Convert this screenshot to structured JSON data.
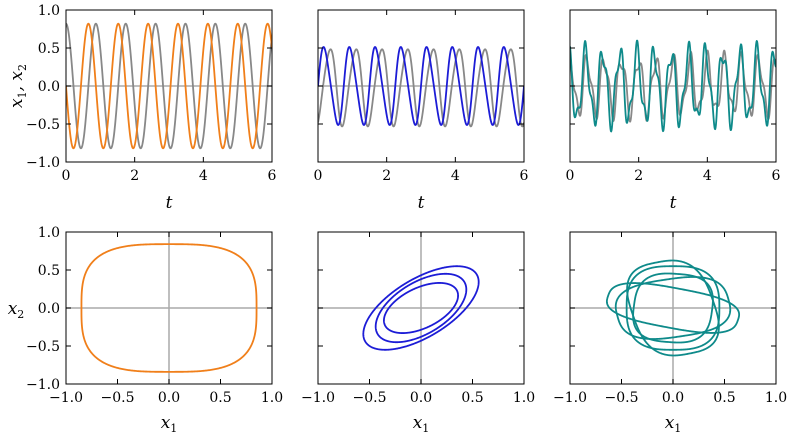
{
  "colors": {
    "orange": "#f07f1a",
    "blue": "#1c1cd6",
    "teal": "#0e8a8a",
    "gray": "#888888",
    "zero": "#aaaaaa"
  },
  "chart_data": [
    {
      "id": "ts-left",
      "type": "line",
      "xlabel": "t",
      "ylabel": "x1,x2",
      "xlim": [
        0,
        6
      ],
      "ylim": [
        -1.0,
        1.0
      ],
      "xticks": [
        "0",
        "2",
        "4",
        "6"
      ],
      "yticks": [
        "1.0",
        "0.5",
        "0.0",
        "−0.5",
        "−1.0"
      ],
      "grid": false,
      "series": [
        {
          "role": "x1",
          "color": "orange",
          "amplitude": 0.82,
          "period": 0.87,
          "phase": 0.25
        },
        {
          "role": "x2",
          "color": "gray",
          "amplitude": 0.82,
          "period": 0.87,
          "phase": 0.0
        }
      ]
    },
    {
      "id": "ts-middle",
      "type": "line",
      "xlabel": "t",
      "ylabel": "",
      "xlim": [
        0,
        6
      ],
      "ylim": [
        -1.0,
        1.0
      ],
      "xticks": [
        "0",
        "2",
        "4",
        "6"
      ],
      "yticks": [],
      "grid": false,
      "series": [
        {
          "role": "x1",
          "color": "blue",
          "amplitude": 0.55,
          "period": 0.75,
          "phase": 0.15
        },
        {
          "role": "x2",
          "color": "gray",
          "amplitude": 0.55,
          "period": 0.75,
          "phase": 0.0
        }
      ]
    },
    {
      "id": "ts-right",
      "type": "line",
      "xlabel": "t",
      "ylabel": "",
      "xlim": [
        0,
        6
      ],
      "ylim": [
        -1.0,
        1.0
      ],
      "xticks": [
        "0",
        "2",
        "4",
        "6"
      ],
      "yticks": [],
      "grid": false,
      "series": [
        {
          "role": "x1",
          "color": "teal",
          "amplitude": 0.55,
          "period": 0.5,
          "phase": 0.1
        },
        {
          "role": "x2",
          "color": "gray",
          "amplitude": 0.45,
          "period": 0.5,
          "phase": 0.0
        }
      ]
    },
    {
      "id": "phase-left",
      "type": "line",
      "xlabel": "x1",
      "ylabel": "x2",
      "xlim": [
        -1.0,
        1.0
      ],
      "ylim": [
        -1.0,
        1.0
      ],
      "xticks": [
        "−1.0",
        "−0.5",
        "0.0",
        "0.5",
        "1.0"
      ],
      "yticks": [
        "1.0",
        "0.5",
        "0.0",
        "−0.5",
        "−1.0"
      ],
      "grid": false,
      "series": [
        {
          "role": "trajectory",
          "color": "orange",
          "rx": 0.85,
          "ry": 0.84,
          "squareness": 3.2
        }
      ]
    },
    {
      "id": "phase-middle",
      "type": "line",
      "xlabel": "x1",
      "ylabel": "",
      "xlim": [
        -1.0,
        1.0
      ],
      "ylim": [
        -1.0,
        1.0
      ],
      "xticks": [
        "−1.0",
        "−0.5",
        "0.0",
        "0.5",
        "1.0"
      ],
      "yticks": [],
      "grid": false,
      "series": [
        {
          "role": "trajectory",
          "color": "blue",
          "loops": [
            {
              "a": 0.56,
              "b": 0.55,
              "shift": 0.9
            },
            {
              "a": 0.44,
              "b": 0.45,
              "shift": 1.0
            },
            {
              "a": 0.36,
              "b": 0.33,
              "shift": 1.05
            }
          ]
        }
      ]
    },
    {
      "id": "phase-right",
      "type": "line",
      "xlabel": "x1",
      "ylabel": "",
      "xlim": [
        -1.0,
        1.0
      ],
      "ylim": [
        -1.0,
        1.0
      ],
      "xticks": [
        "−1.0",
        "−0.5",
        "0.0",
        "0.5",
        "1.0"
      ],
      "yticks": [],
      "grid": false,
      "series": [
        {
          "role": "trajectory",
          "color": "teal",
          "loops": [
            {
              "rx": 0.65,
              "ry": 0.26,
              "tilt": -0.25
            },
            {
              "rx": 0.55,
              "ry": 0.38,
              "tilt": 0.2
            },
            {
              "rx": 0.45,
              "ry": 0.55,
              "tilt": 0.0
            },
            {
              "rx": 0.4,
              "ry": 0.62,
              "tilt": 0.25
            },
            {
              "rx": 0.38,
              "ry": 0.45,
              "tilt": -0.1
            }
          ]
        }
      ]
    }
  ]
}
